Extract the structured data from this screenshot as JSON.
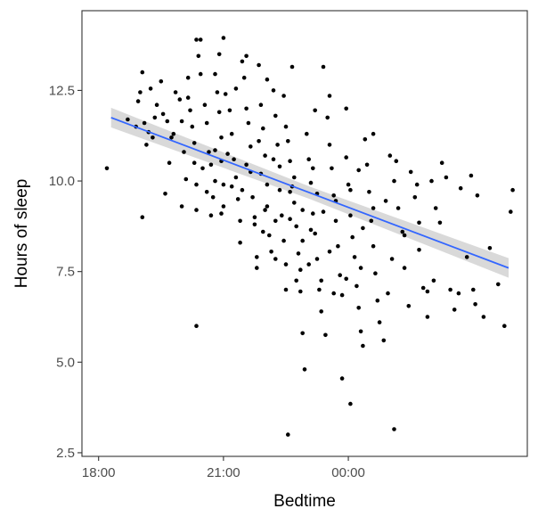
{
  "chart_data": {
    "type": "scatter",
    "title": "",
    "xlabel": "Bedtime",
    "ylabel": "Hours of sleep",
    "x_unit": "hours (clock time; values above 24 are past midnight)",
    "xlim": [
      17.6,
      28.3
    ],
    "ylim": [
      2.4,
      14.7
    ],
    "x_ticks": [
      {
        "value": 18,
        "label": "18:00"
      },
      {
        "value": 21,
        "label": "21:00"
      },
      {
        "value": 24,
        "label": "00:00"
      }
    ],
    "y_ticks": [
      {
        "value": 2.5,
        "label": "2.5"
      },
      {
        "value": 5,
        "label": "5.0"
      },
      {
        "value": 7.5,
        "label": "7.5"
      },
      {
        "value": 10,
        "label": "10.0"
      },
      {
        "value": 12.5,
        "label": "12.5"
      }
    ],
    "grid": false,
    "points": [
      [
        18.2,
        10.35
      ],
      [
        18.7,
        11.7
      ],
      [
        18.9,
        11.5
      ],
      [
        18.95,
        12.2
      ],
      [
        19.0,
        12.45
      ],
      [
        19.05,
        13.0
      ],
      [
        19.1,
        11.6
      ],
      [
        19.05,
        9.0
      ],
      [
        19.15,
        11.0
      ],
      [
        19.2,
        11.35
      ],
      [
        19.3,
        11.2
      ],
      [
        19.4,
        12.1
      ],
      [
        19.5,
        12.75
      ],
      [
        19.55,
        11.85
      ],
      [
        19.65,
        11.65
      ],
      [
        19.7,
        10.5
      ],
      [
        19.6,
        9.65
      ],
      [
        19.75,
        11.2
      ],
      [
        19.85,
        12.45
      ],
      [
        19.95,
        12.25
      ],
      [
        20.0,
        11.65
      ],
      [
        20.05,
        10.8
      ],
      [
        20.1,
        10.05
      ],
      [
        20.0,
        9.3
      ],
      [
        20.15,
        12.3
      ],
      [
        20.2,
        11.95
      ],
      [
        20.25,
        11.5
      ],
      [
        20.3,
        11.05
      ],
      [
        20.3,
        10.5
      ],
      [
        20.35,
        9.9
      ],
      [
        20.35,
        9.2
      ],
      [
        20.35,
        13.9
      ],
      [
        20.4,
        13.45
      ],
      [
        20.45,
        13.9
      ],
      [
        20.45,
        12.95
      ],
      [
        20.35,
        6.0
      ],
      [
        20.55,
        12.1
      ],
      [
        20.6,
        11.6
      ],
      [
        20.65,
        10.8
      ],
      [
        20.7,
        10.45
      ],
      [
        20.75,
        9.55
      ],
      [
        20.8,
        10.0
      ],
      [
        20.85,
        12.45
      ],
      [
        20.9,
        11.9
      ],
      [
        20.95,
        11.2
      ],
      [
        20.8,
        10.85
      ],
      [
        20.95,
        10.55
      ],
      [
        21.0,
        9.9
      ],
      [
        20.95,
        9.1
      ],
      [
        20.9,
        13.5
      ],
      [
        21.0,
        13.95
      ],
      [
        21.05,
        12.4
      ],
      [
        21.15,
        11.95
      ],
      [
        21.2,
        11.3
      ],
      [
        21.25,
        10.6
      ],
      [
        21.3,
        10.1
      ],
      [
        21.35,
        9.5
      ],
      [
        21.4,
        8.9
      ],
      [
        21.4,
        8.3
      ],
      [
        21.45,
        13.3
      ],
      [
        21.5,
        12.85
      ],
      [
        21.55,
        12.0
      ],
      [
        21.6,
        11.6
      ],
      [
        21.65,
        10.95
      ],
      [
        21.65,
        10.25
      ],
      [
        21.7,
        9.55
      ],
      [
        21.75,
        8.8
      ],
      [
        21.8,
        7.9
      ],
      [
        21.8,
        7.6
      ],
      [
        21.85,
        13.2
      ],
      [
        21.9,
        12.1
      ],
      [
        21.95,
        11.45
      ],
      [
        22.0,
        10.7
      ],
      [
        22.05,
        9.9
      ],
      [
        22.05,
        9.3
      ],
      [
        22.1,
        8.5
      ],
      [
        22.15,
        8.05
      ],
      [
        22.2,
        12.5
      ],
      [
        22.25,
        11.8
      ],
      [
        22.3,
        11.0
      ],
      [
        22.35,
        10.4
      ],
      [
        22.35,
        9.75
      ],
      [
        22.4,
        9.05
      ],
      [
        22.45,
        8.35
      ],
      [
        22.5,
        7.7
      ],
      [
        22.5,
        7.0
      ],
      [
        22.55,
        11.1
      ],
      [
        22.6,
        10.55
      ],
      [
        22.65,
        9.85
      ],
      [
        22.7,
        9.4
      ],
      [
        22.75,
        8.75
      ],
      [
        22.8,
        8.0
      ],
      [
        22.85,
        7.55
      ],
      [
        22.85,
        6.95
      ],
      [
        22.9,
        5.8
      ],
      [
        22.95,
        4.8
      ],
      [
        22.55,
        3.0
      ],
      [
        23.0,
        11.3
      ],
      [
        23.05,
        10.6
      ],
      [
        23.1,
        9.95
      ],
      [
        23.15,
        9.1
      ],
      [
        23.2,
        8.55
      ],
      [
        23.25,
        7.85
      ],
      [
        23.3,
        7.0
      ],
      [
        23.35,
        6.4
      ],
      [
        23.45,
        5.75
      ],
      [
        23.5,
        11.75
      ],
      [
        23.55,
        11.0
      ],
      [
        23.6,
        10.35
      ],
      [
        23.65,
        9.6
      ],
      [
        23.7,
        8.9
      ],
      [
        23.75,
        8.2
      ],
      [
        23.8,
        7.4
      ],
      [
        23.85,
        6.85
      ],
      [
        23.85,
        4.55
      ],
      [
        23.95,
        10.65
      ],
      [
        24.0,
        9.9
      ],
      [
        24.05,
        9.05
      ],
      [
        24.1,
        8.45
      ],
      [
        24.15,
        7.9
      ],
      [
        24.2,
        7.1
      ],
      [
        24.25,
        6.5
      ],
      [
        24.3,
        5.85
      ],
      [
        24.35,
        5.45
      ],
      [
        24.4,
        11.15
      ],
      [
        24.45,
        10.45
      ],
      [
        24.5,
        9.7
      ],
      [
        24.55,
        8.9
      ],
      [
        24.6,
        8.2
      ],
      [
        24.65,
        7.45
      ],
      [
        24.7,
        6.7
      ],
      [
        24.75,
        6.1
      ],
      [
        24.85,
        5.6
      ],
      [
        24.9,
        9.45
      ],
      [
        25.0,
        10.7
      ],
      [
        25.1,
        10.0
      ],
      [
        25.2,
        9.25
      ],
      [
        25.3,
        8.6
      ],
      [
        25.35,
        7.6
      ],
      [
        25.45,
        6.55
      ],
      [
        25.5,
        10.25
      ],
      [
        25.6,
        9.55
      ],
      [
        25.7,
        8.85
      ],
      [
        25.8,
        7.05
      ],
      [
        25.9,
        6.25
      ],
      [
        26.0,
        10.0
      ],
      [
        26.1,
        9.25
      ],
      [
        26.2,
        8.85
      ],
      [
        26.35,
        10.1
      ],
      [
        26.45,
        7.0
      ],
      [
        26.55,
        6.45
      ],
      [
        26.65,
        6.9
      ],
      [
        26.85,
        7.9
      ],
      [
        27.0,
        7.0
      ],
      [
        27.05,
        6.6
      ],
      [
        27.25,
        6.25
      ],
      [
        27.4,
        8.15
      ],
      [
        27.6,
        7.15
      ],
      [
        27.75,
        6.0
      ],
      [
        27.9,
        9.15
      ],
      [
        27.95,
        9.75
      ],
      [
        19.35,
        11.75
      ],
      [
        19.8,
        11.3
      ],
      [
        20.5,
        10.35
      ],
      [
        20.6,
        9.7
      ],
      [
        21.1,
        10.75
      ],
      [
        21.2,
        9.85
      ],
      [
        21.55,
        10.45
      ],
      [
        21.9,
        10.2
      ],
      [
        22.2,
        10.6
      ],
      [
        22.6,
        8.95
      ],
      [
        22.9,
        9.2
      ],
      [
        23.1,
        8.65
      ],
      [
        23.4,
        9.15
      ],
      [
        23.7,
        9.45
      ],
      [
        24.05,
        9.75
      ],
      [
        24.35,
        8.7
      ],
      [
        24.6,
        9.25
      ],
      [
        20.8,
        12.95
      ],
      [
        21.3,
        12.55
      ],
      [
        22.05,
        12.8
      ],
      [
        23.55,
        12.35
      ],
      [
        23.4,
        13.15
      ],
      [
        22.65,
        13.15
      ],
      [
        24.6,
        11.3
      ],
      [
        23.95,
        12.0
      ],
      [
        19.25,
        12.55
      ],
      [
        20.15,
        12.85
      ],
      [
        21.55,
        13.45
      ],
      [
        22.45,
        12.35
      ],
      [
        23.2,
        11.95
      ],
      [
        24.25,
        10.3
      ],
      [
        25.15,
        10.55
      ],
      [
        25.35,
        8.5
      ],
      [
        25.65,
        9.9
      ],
      [
        26.25,
        10.5
      ],
      [
        26.7,
        9.8
      ],
      [
        26.95,
        10.15
      ],
      [
        27.1,
        9.6
      ],
      [
        25.7,
        8.1
      ],
      [
        25.05,
        7.85
      ],
      [
        24.95,
        6.9
      ],
      [
        25.9,
        6.95
      ],
      [
        26.05,
        7.25
      ],
      [
        24.05,
        3.85
      ],
      [
        25.1,
        3.15
      ],
      [
        23.25,
        9.65
      ],
      [
        23.15,
        10.35
      ],
      [
        22.7,
        10.1
      ],
      [
        22.0,
        9.2
      ],
      [
        21.75,
        9.0
      ],
      [
        21.45,
        9.75
      ],
      [
        21.0,
        9.3
      ],
      [
        20.7,
        9.05
      ],
      [
        22.25,
        8.9
      ],
      [
        22.9,
        8.35
      ],
      [
        23.55,
        8.05
      ],
      [
        24.3,
        7.6
      ],
      [
        23.95,
        7.3
      ],
      [
        23.65,
        6.9
      ],
      [
        22.25,
        7.85
      ],
      [
        22.75,
        7.25
      ],
      [
        23.05,
        7.7
      ],
      [
        23.35,
        7.25
      ],
      [
        21.85,
        11.1
      ],
      [
        22.5,
        11.5
      ],
      [
        21.95,
        8.6
      ],
      [
        22.6,
        9.7
      ]
    ],
    "trend": {
      "label": "linear fit",
      "color": "#3366ff",
      "x_range": [
        18.3,
        27.85
      ],
      "y_range": [
        11.75,
        7.6
      ],
      "band_halfwidth": [
        0.27,
        0.17,
        0.27
      ]
    },
    "point_color": "#000000",
    "band_color": "#cccccc"
  }
}
